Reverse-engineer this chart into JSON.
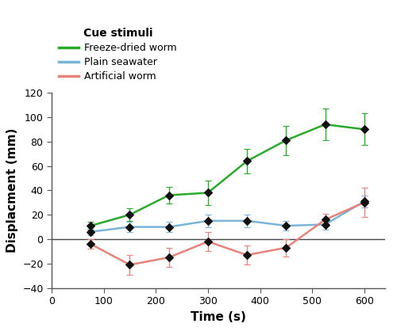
{
  "time": [
    75,
    150,
    225,
    300,
    375,
    450,
    525,
    600
  ],
  "green_y": [
    11,
    20,
    36,
    38,
    64,
    81,
    94,
    90
  ],
  "green_err": [
    3,
    5,
    7,
    10,
    10,
    12,
    13,
    13
  ],
  "blue_y": [
    6,
    10,
    10,
    15,
    15,
    11,
    12,
    31
  ],
  "blue_err": [
    3,
    4,
    4,
    5,
    5,
    4,
    4,
    5
  ],
  "red_y": [
    -4,
    -21,
    -15,
    -2,
    -13,
    -7,
    16,
    30
  ],
  "red_err": [
    4,
    8,
    8,
    8,
    8,
    7,
    5,
    12
  ],
  "green_color": "#2aaa2a",
  "blue_color": "#7ab4d8",
  "red_color": "#e8837a",
  "black_marker": "#111111",
  "xlabel": "Time (s)",
  "ylabel": "Displac​ment (mm)",
  "ylim": [
    -40,
    120
  ],
  "xlim": [
    0,
    640
  ],
  "xticks": [
    0,
    100,
    200,
    300,
    400,
    500,
    600
  ],
  "yticks": [
    -40,
    -20,
    0,
    20,
    40,
    60,
    80,
    100,
    120
  ],
  "legend_title": "Cue stimuli",
  "legend_labels": [
    "Freeze-dried worm",
    "Plain seawater",
    "Artificial worm"
  ],
  "legend_colors": [
    "#2aaa2a",
    "#7ab4d8",
    "#e8837a"
  ]
}
